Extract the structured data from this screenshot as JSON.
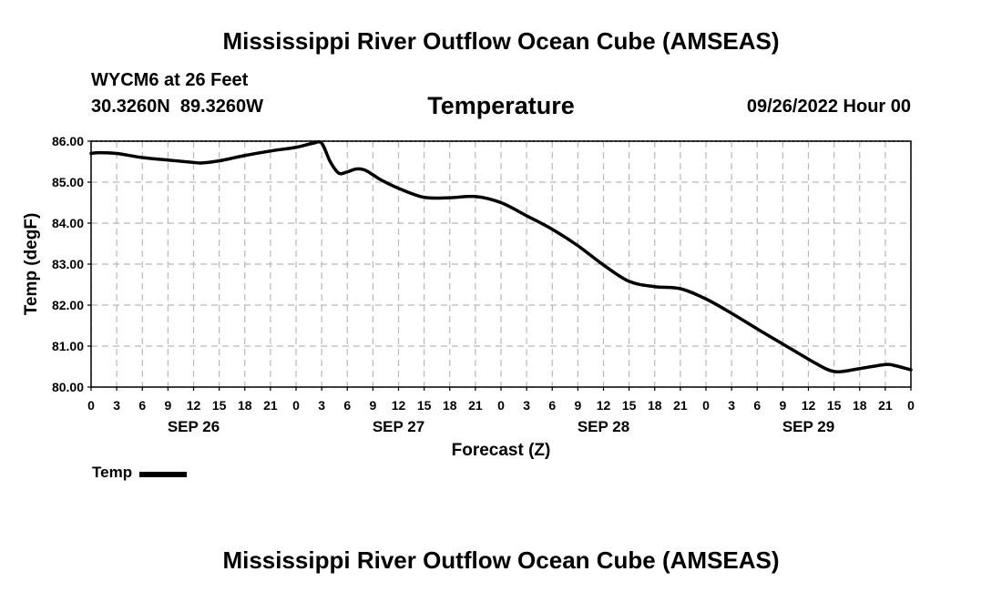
{
  "header": {
    "title": "Mississippi River Outflow Ocean Cube (AMSEAS)",
    "station": "WYCM6 at 26 Feet",
    "coordinates": "30.3260N  89.3260W",
    "datetime": "09/26/2022 Hour 00",
    "footer_title": "Mississippi River Outflow Ocean Cube (AMSEAS)"
  },
  "legend": {
    "label": "Temp",
    "color": "#000000"
  },
  "chart_data": {
    "type": "line",
    "title": "Temperature",
    "xlabel": "Forecast (Z)",
    "ylabel": "Temp (degF)",
    "ylim": [
      80.0,
      86.0
    ],
    "xlim": [
      0,
      96
    ],
    "y_ticks": [
      "80.00",
      "81.00",
      "82.00",
      "83.00",
      "84.00",
      "85.00",
      "86.00"
    ],
    "x_tick_labels": [
      "0",
      "3",
      "6",
      "9",
      "12",
      "15",
      "18",
      "21",
      "0",
      "3",
      "6",
      "9",
      "12",
      "15",
      "18",
      "21",
      "0",
      "3",
      "6",
      "9",
      "12",
      "15",
      "18",
      "21",
      "0",
      "3",
      "6",
      "9",
      "12",
      "15",
      "18",
      "21",
      "0"
    ],
    "date_labels": [
      {
        "label": "SEP 26",
        "hour": 12
      },
      {
        "label": "SEP 27",
        "hour": 36
      },
      {
        "label": "SEP 28",
        "hour": 60
      },
      {
        "label": "SEP 29",
        "hour": 84
      }
    ],
    "grid": true,
    "series": [
      {
        "name": "Temp",
        "x_hours": [
          0,
          1,
          3,
          6,
          9,
          12,
          13,
          15,
          18,
          21,
          24,
          26,
          27,
          28,
          29,
          30,
          31,
          32,
          33,
          34,
          36,
          39,
          42,
          45,
          48,
          51,
          54,
          57,
          60,
          63,
          66,
          69,
          72,
          75,
          78,
          81,
          84,
          86,
          87,
          88,
          90,
          93,
          94,
          96
        ],
        "values": [
          85.7,
          85.72,
          85.7,
          85.6,
          85.54,
          85.48,
          85.47,
          85.52,
          85.65,
          85.76,
          85.85,
          85.95,
          85.95,
          85.5,
          85.22,
          85.25,
          85.32,
          85.3,
          85.18,
          85.05,
          84.85,
          84.63,
          84.62,
          84.65,
          84.5,
          84.18,
          83.85,
          83.45,
          82.98,
          82.58,
          82.45,
          82.4,
          82.15,
          81.8,
          81.42,
          81.05,
          80.68,
          80.45,
          80.38,
          80.38,
          80.45,
          80.55,
          80.53,
          80.42
        ]
      }
    ]
  }
}
